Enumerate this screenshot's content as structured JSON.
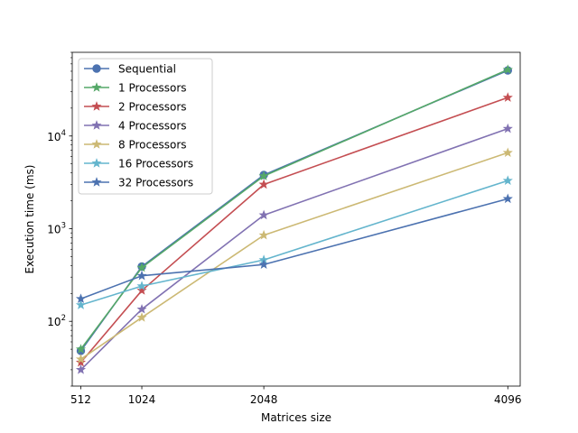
{
  "chart_data": {
    "type": "line",
    "title": "",
    "xlabel": "Matrices size",
    "ylabel": "Execution time (ms)",
    "x": [
      512,
      1024,
      2048,
      4096
    ],
    "x_ticks": [
      "512",
      "1024",
      "2048",
      "4096"
    ],
    "xlim": [
      440,
      4200
    ],
    "y_scale": "log",
    "ylim": [
      20,
      80000
    ],
    "y_ticks": [
      {
        "value": 100,
        "base": "10",
        "exp": "2"
      },
      {
        "value": 1000,
        "base": "10",
        "exp": "3"
      },
      {
        "value": 10000,
        "base": "10",
        "exp": "4"
      }
    ],
    "grid": false,
    "legend_position": "upper-left",
    "series": [
      {
        "name": "Sequential",
        "color": "#4c72b0",
        "marker": "circle",
        "values": [
          48,
          390,
          3800,
          51000
        ]
      },
      {
        "name": "1 Processors",
        "color": "#55a868",
        "marker": "star",
        "values": [
          50,
          380,
          3700,
          52000
        ]
      },
      {
        "name": "2 Processors",
        "color": "#c44e52",
        "marker": "star",
        "values": [
          36,
          215,
          3000,
          26000
        ]
      },
      {
        "name": "4 Processors",
        "color": "#8172b2",
        "marker": "star",
        "values": [
          30,
          135,
          1400,
          12000
        ]
      },
      {
        "name": "8 Processors",
        "color": "#ccb974",
        "marker": "star",
        "values": [
          39,
          110,
          850,
          6600
        ]
      },
      {
        "name": "16 Processors",
        "color": "#64b5cd",
        "marker": "star",
        "values": [
          150,
          240,
          460,
          3300
        ]
      },
      {
        "name": "32 Processors",
        "color": "#4c72b0",
        "marker": "star",
        "values": [
          175,
          310,
          410,
          2100
        ]
      }
    ]
  }
}
